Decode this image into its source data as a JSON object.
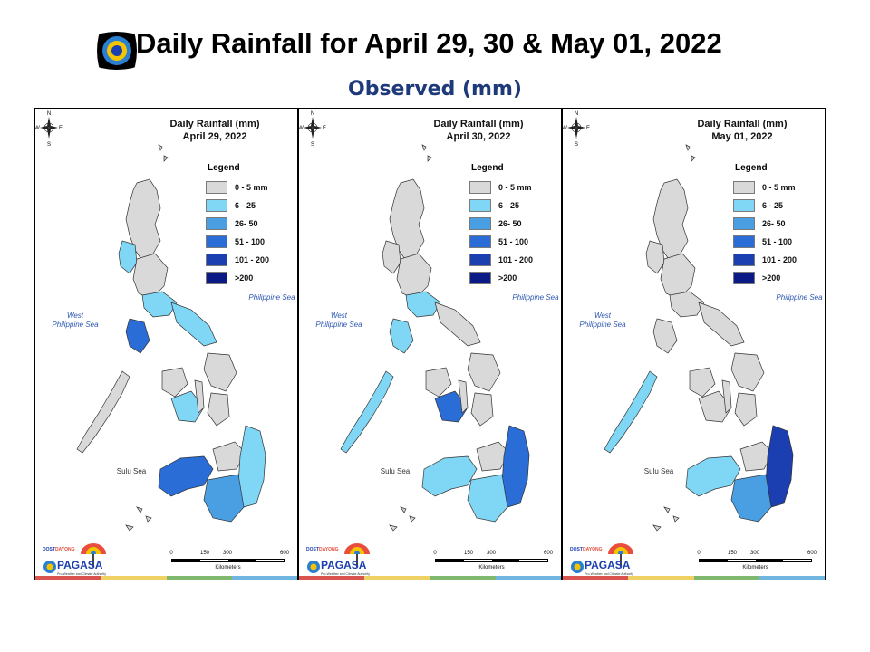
{
  "header": {
    "title": "Daily Rainfall for April 29, 30 & May 01, 2022",
    "subtitle": "Observed (mm)"
  },
  "compass": {
    "n": "N",
    "s": "S",
    "e": "E",
    "w": "W"
  },
  "legend": {
    "title": "Legend",
    "classes": [
      {
        "label": "0 - 5 mm",
        "color": "#d9d9d9"
      },
      {
        "label": "6 - 25",
        "color": "#7fd6f5"
      },
      {
        "label": "26- 50",
        "color": "#4a9fe2"
      },
      {
        "label": "51 - 100",
        "color": "#2a6dd6"
      },
      {
        "label": "101 - 200",
        "color": "#1b3fb0"
      },
      {
        "label": ">200",
        "color": "#0c1a85"
      }
    ]
  },
  "scale": {
    "ticks": [
      "0",
      "150",
      "300",
      "600"
    ],
    "unit": "Kilometers"
  },
  "brand": {
    "dost": "DOST",
    "name": "PAGASA",
    "tagline": "Pro-Weather and Climate Authority",
    "dayong": "DAYONG"
  },
  "colors": {
    "stripe": [
      "#d9534f",
      "#f0d264",
      "#7fb86e",
      "#6fb5e0"
    ]
  },
  "panels": [
    {
      "title_line1": "Daily Rainfall (mm)",
      "title_line2": "April 29, 2022",
      "west_sea_line1": "West",
      "west_sea_line2": "Philippine Sea",
      "east_sea": "Philippine Sea",
      "sulu_sea": "Sulu Sea",
      "rain": {
        "luzon_west": "#7fd6f5",
        "luzon_south": "#7fd6f5",
        "mindoro": "#2a6dd6",
        "bicol": "#7fd6f5",
        "palawan": "#d9d9d9",
        "visayas": "#7fd6f5",
        "mindanao_west": "#2a6dd6",
        "mindanao_east": "#7fd6f5",
        "mindanao_south": "#4a9fe2"
      }
    },
    {
      "title_line1": "Daily Rainfall (mm)",
      "title_line2": "April 30, 2022",
      "west_sea_line1": "West",
      "west_sea_line2": "Philippine Sea",
      "east_sea": "Philippine Sea",
      "sulu_sea": "Sulu Sea",
      "rain": {
        "luzon_west": "#d9d9d9",
        "luzon_south": "#7fd6f5",
        "mindoro": "#7fd6f5",
        "bicol": "#d9d9d9",
        "palawan": "#7fd6f5",
        "visayas": "#2a6dd6",
        "mindanao_west": "#7fd6f5",
        "mindanao_east": "#2a6dd6",
        "mindanao_south": "#7fd6f5"
      }
    },
    {
      "title_line1": "Daily Rainfall (mm)",
      "title_line2": "May 01, 2022",
      "west_sea_line1": "West",
      "west_sea_line2": "Philippine Sea",
      "east_sea": "Philippine Sea",
      "sulu_sea": "Sulu Sea",
      "rain": {
        "luzon_west": "#d9d9d9",
        "luzon_south": "#d9d9d9",
        "mindoro": "#d9d9d9",
        "bicol": "#d9d9d9",
        "palawan": "#7fd6f5",
        "visayas": "#d9d9d9",
        "mindanao_west": "#7fd6f5",
        "mindanao_east": "#1b3fb0",
        "mindanao_south": "#4a9fe2"
      }
    }
  ]
}
